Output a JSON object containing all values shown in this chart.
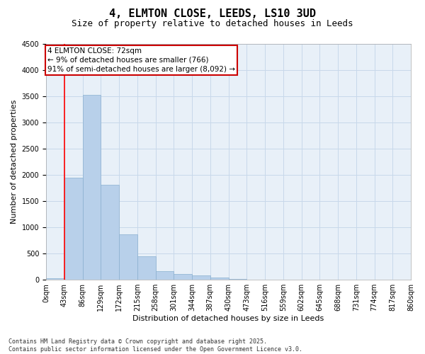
{
  "title": "4, ELMTON CLOSE, LEEDS, LS10 3UD",
  "subtitle": "Size of property relative to detached houses in Leeds",
  "xlabel": "Distribution of detached houses by size in Leeds",
  "ylabel": "Number of detached properties",
  "bar_labels": [
    "0sqm",
    "43sqm",
    "86sqm",
    "129sqm",
    "172sqm",
    "215sqm",
    "258sqm",
    "301sqm",
    "344sqm",
    "387sqm",
    "430sqm",
    "473sqm",
    "516sqm",
    "559sqm",
    "602sqm",
    "645sqm",
    "688sqm",
    "731sqm",
    "774sqm",
    "817sqm",
    "860sqm"
  ],
  "bar_values": [
    30,
    1950,
    3520,
    1810,
    860,
    445,
    170,
    115,
    90,
    50,
    15,
    8,
    4,
    2,
    1,
    0,
    0,
    0,
    0,
    0
  ],
  "bar_color": "#b8d0ea",
  "bar_edge_color": "#8ab0d0",
  "grid_color": "#c8d8ea",
  "bg_color": "#e8f0f8",
  "red_line_x": 1,
  "annotation_text": "4 ELMTON CLOSE: 72sqm\n← 9% of detached houses are smaller (766)\n91% of semi-detached houses are larger (8,092) →",
  "annotation_box_color": "#ffffff",
  "annotation_box_edge": "#cc0000",
  "ylim": [
    0,
    4500
  ],
  "yticks": [
    0,
    500,
    1000,
    1500,
    2000,
    2500,
    3000,
    3500,
    4000,
    4500
  ],
  "footer_text": "Contains HM Land Registry data © Crown copyright and database right 2025.\nContains public sector information licensed under the Open Government Licence v3.0.",
  "title_fontsize": 11,
  "subtitle_fontsize": 9,
  "axis_label_fontsize": 8,
  "tick_fontsize": 7,
  "annotation_fontsize": 7.5
}
